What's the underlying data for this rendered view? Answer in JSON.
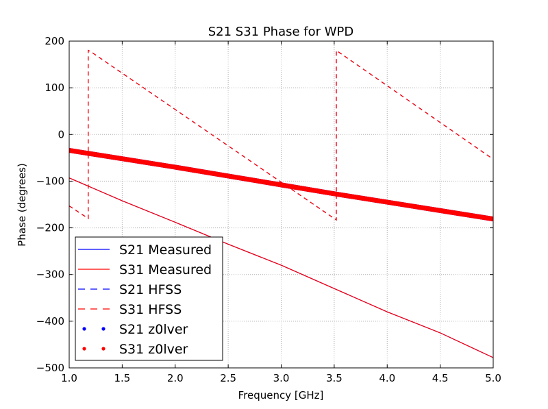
{
  "chart_data": {
    "type": "line",
    "title": "S21 S31 Phase for WPD",
    "xlabel": "Frequency [GHz]",
    "ylabel": "Phase (degrees)",
    "xlim": [
      1.0,
      5.0
    ],
    "ylim": [
      -500,
      200
    ],
    "xticks": [
      1.0,
      1.5,
      2.0,
      2.5,
      3.0,
      3.5,
      4.0,
      4.5,
      5.0
    ],
    "xtick_labels": [
      "1.0",
      "1.5",
      "2.0",
      "2.5",
      "3.0",
      "3.5",
      "4.0",
      "4.5",
      "5.0"
    ],
    "yticks": [
      -500,
      -400,
      -300,
      -200,
      -100,
      0,
      100,
      200
    ],
    "ytick_labels": [
      "−500",
      "−400",
      "−300",
      "−200",
      "−100",
      "0",
      "100",
      "200"
    ],
    "grid": true,
    "legend_position": "lower-left",
    "series": [
      {
        "name": "S21 Measured",
        "color": "#0000ff",
        "style": "solid",
        "x": [
          1.0,
          1.5,
          2.0,
          2.5,
          3.0,
          3.5,
          4.0,
          4.5,
          5.0
        ],
        "y": [
          -93,
          -142,
          -188,
          -235,
          -280,
          -330,
          -380,
          -425,
          -478
        ]
      },
      {
        "name": "S31 Measured",
        "color": "#ff0000",
        "style": "solid",
        "x": [
          1.0,
          1.5,
          2.0,
          2.5,
          3.0,
          3.5,
          4.0,
          4.5,
          5.0
        ],
        "y": [
          -93,
          -142,
          -188,
          -235,
          -280,
          -330,
          -380,
          -425,
          -478
        ]
      },
      {
        "name": "S21 HFSS",
        "color": "#0000ff",
        "style": "dashed",
        "x": [
          1.0,
          1.18,
          1.18,
          1.2,
          3.5,
          3.52,
          3.52,
          5.0
        ],
        "y": [
          -153,
          -180,
          180,
          178,
          -180,
          -183,
          180,
          -53
        ]
      },
      {
        "name": "S31 HFSS",
        "color": "#ff0000",
        "style": "dashed",
        "x": [
          1.0,
          1.18,
          1.18,
          1.2,
          3.5,
          3.52,
          3.52,
          5.0
        ],
        "y": [
          -153,
          -180,
          180,
          178,
          -180,
          -183,
          180,
          -53
        ]
      },
      {
        "name": "S21 z0lver",
        "color": "#0000ff",
        "style": "dotted",
        "x": [
          1.0,
          1.5,
          2.0,
          2.5,
          3.0,
          3.5,
          4.0,
          4.5,
          5.0
        ],
        "y": [
          -34,
          -52,
          -70,
          -89,
          -108,
          -127,
          -145,
          -163,
          -181
        ]
      },
      {
        "name": "S31 z0lver",
        "color": "#ff0000",
        "style": "dotted",
        "x": [
          1.0,
          1.5,
          2.0,
          2.5,
          3.0,
          3.5,
          4.0,
          4.5,
          5.0
        ],
        "y": [
          -34,
          -52,
          -70,
          -89,
          -108,
          -127,
          -145,
          -163,
          -181
        ]
      }
    ]
  }
}
